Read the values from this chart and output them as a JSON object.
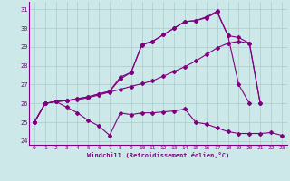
{
  "background_color": "#cce8e8",
  "line_color": "#800080",
  "grid_color": "#aacccc",
  "xlabel": "Windchill (Refroidissement éolien,°C)",
  "ylim": [
    23.8,
    31.4
  ],
  "xlim": [
    -0.5,
    23.5
  ],
  "yticks": [
    24,
    25,
    26,
    27,
    28,
    29,
    30,
    31
  ],
  "xticks": [
    0,
    1,
    2,
    3,
    4,
    5,
    6,
    7,
    8,
    9,
    10,
    11,
    12,
    13,
    14,
    15,
    16,
    17,
    18,
    19,
    20,
    21,
    22,
    23
  ],
  "s1": [
    25.0,
    26.0,
    26.1,
    25.8,
    25.5,
    25.1,
    24.8,
    24.3,
    25.5,
    25.4,
    25.5,
    25.5,
    25.55,
    25.6,
    25.7,
    25.0,
    24.9,
    24.7,
    24.5,
    24.4,
    24.4,
    24.4,
    24.45,
    24.3
  ],
  "s2": [
    25.0,
    26.0,
    26.1,
    26.15,
    26.2,
    26.3,
    26.45,
    26.6,
    26.75,
    26.9,
    27.05,
    27.2,
    27.45,
    27.7,
    27.95,
    28.25,
    28.6,
    28.95,
    29.2,
    29.3,
    29.2,
    26.0,
    null,
    null
  ],
  "s3": [
    25.0,
    26.0,
    26.1,
    26.15,
    26.25,
    26.35,
    26.5,
    26.65,
    27.3,
    27.65,
    29.1,
    29.3,
    29.65,
    30.0,
    30.35,
    30.4,
    30.55,
    30.85,
    29.6,
    27.0,
    26.0,
    null,
    null,
    null
  ],
  "s4": [
    25.0,
    26.0,
    26.1,
    26.15,
    26.25,
    26.35,
    26.5,
    26.65,
    27.4,
    27.65,
    29.15,
    29.3,
    29.65,
    30.0,
    30.35,
    30.4,
    30.6,
    30.9,
    29.6,
    29.5,
    29.2,
    26.0,
    null,
    null
  ]
}
